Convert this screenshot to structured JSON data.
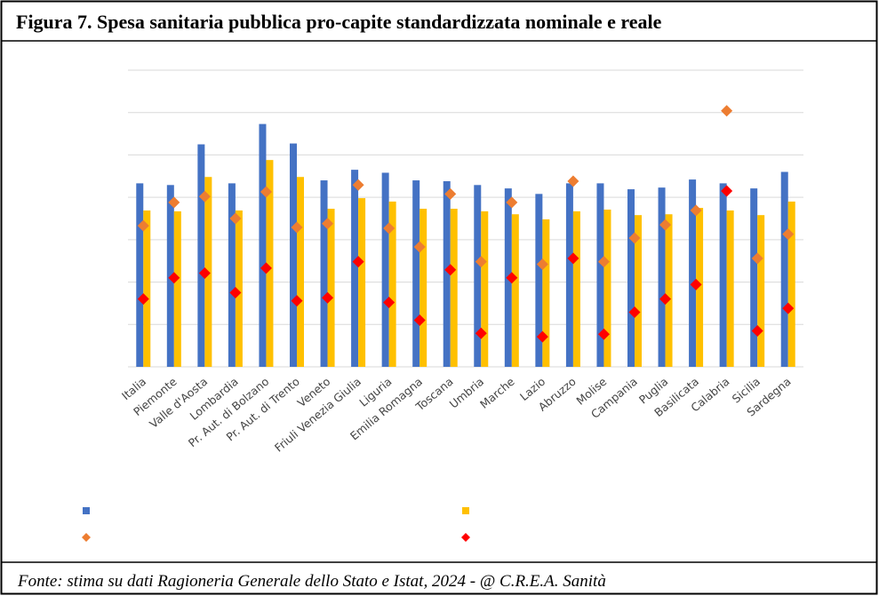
{
  "title": "Figura 7. Spesa sanitaria pubblica pro-capite standardizzata nominale e reale",
  "source": "Fonte: stima su dati Ragioneria Generale dello Stato e Istat, 2024 - @ C.R.E.A. Sanità",
  "chart_data": {
    "type": "bar",
    "categories": [
      "Italia",
      "Piemonte",
      "Valle d'Aosta",
      "Lombardia",
      "Pr. Aut. di Bolzano",
      "Pr. Aut. di Trento",
      "Veneto",
      "Friuli Venezia Giulia",
      "Liguria",
      "Emilia Romagna",
      "Toscana",
      "Umbria",
      "Marche",
      "Lazio",
      "Abruzzo",
      "Molise",
      "Campania",
      "Puglia",
      "Basilicata",
      "Calabria",
      "Sicilia",
      "Sardegna"
    ],
    "series": [
      {
        "type": "bar",
        "color": "#4472c4",
        "values": [
          4.33,
          4.29,
          5.25,
          4.33,
          5.73,
          5.27,
          4.4,
          4.65,
          4.58,
          4.4,
          4.38,
          4.29,
          4.21,
          4.08,
          4.33,
          4.33,
          4.19,
          4.23,
          4.42,
          4.33,
          4.21,
          4.6
        ]
      },
      {
        "type": "bar",
        "color": "#ffc000",
        "values": [
          3.69,
          3.67,
          4.48,
          3.69,
          4.88,
          4.48,
          3.73,
          3.98,
          3.9,
          3.73,
          3.73,
          3.67,
          3.6,
          3.48,
          3.67,
          3.71,
          3.58,
          3.6,
          3.75,
          3.69,
          3.58,
          3.9
        ]
      },
      {
        "type": "point",
        "color": "#ed7d31",
        "values": [
          3.33,
          3.88,
          4.02,
          3.5,
          4.13,
          3.29,
          3.38,
          4.29,
          3.27,
          2.83,
          4.08,
          2.48,
          3.88,
          2.42,
          4.38,
          2.48,
          3.04,
          3.35,
          3.69,
          6.04,
          2.56,
          3.13
        ]
      },
      {
        "type": "point",
        "color": "#ff0000",
        "values": [
          1.6,
          2.1,
          2.21,
          1.75,
          2.33,
          1.56,
          1.63,
          2.48,
          1.52,
          1.1,
          2.29,
          0.79,
          2.1,
          0.71,
          2.56,
          0.77,
          1.29,
          1.6,
          1.94,
          4.15,
          0.85,
          1.38
        ]
      }
    ],
    "ylim": [
      0,
      7
    ],
    "yticks": [
      0,
      1,
      2,
      3,
      4,
      5,
      6,
      7
    ],
    "grid": true
  }
}
